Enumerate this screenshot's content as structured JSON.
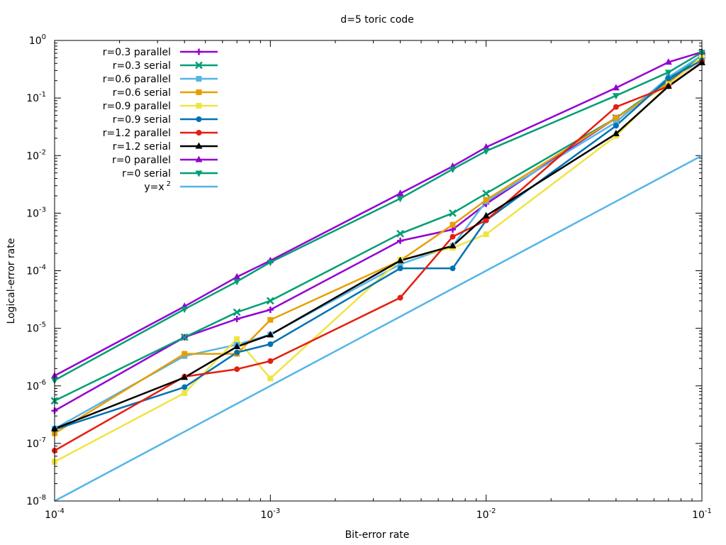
{
  "chart_data": {
    "type": "line",
    "title": "d=5 toric code",
    "xlabel": "Bit-error rate",
    "ylabel": "Logical-error rate",
    "xscale": "log",
    "yscale": "log",
    "xlim": [
      0.0001,
      0.1
    ],
    "ylim": [
      1e-08,
      1
    ],
    "grid": false,
    "legend_position": "top-left",
    "x_ticks": [
      {
        "base": "10",
        "exp": "-4",
        "value": 0.0001
      },
      {
        "base": "10",
        "exp": "-3",
        "value": 0.001
      },
      {
        "base": "10",
        "exp": "-2",
        "value": 0.01
      },
      {
        "base": "10",
        "exp": "-1",
        "value": 0.1
      }
    ],
    "y_ticks": [
      {
        "base": "10",
        "exp": "-8",
        "value": 1e-08
      },
      {
        "base": "10",
        "exp": "-7",
        "value": 1e-07
      },
      {
        "base": "10",
        "exp": "-6",
        "value": 1e-06
      },
      {
        "base": "10",
        "exp": "-5",
        "value": 1e-05
      },
      {
        "base": "10",
        "exp": "-4",
        "value": 0.0001
      },
      {
        "base": "10",
        "exp": "-3",
        "value": 0.001
      },
      {
        "base": "10",
        "exp": "-2",
        "value": 0.01
      },
      {
        "base": "10",
        "exp": "-1",
        "value": 0.1
      },
      {
        "base": "10",
        "exp": "0",
        "value": 1
      }
    ],
    "x": [
      0.0001,
      0.0004,
      0.0007,
      0.001,
      0.004,
      0.007,
      0.01,
      0.04,
      0.07,
      0.1
    ],
    "series": [
      {
        "name": "r=0.3 parallel",
        "color": "#9400d3",
        "marker": "plus",
        "values": [
          3.7e-07,
          7e-06,
          1.45e-05,
          2.1e-05,
          0.00033,
          0.00052,
          0.00145,
          0.045,
          0.18,
          0.55
        ]
      },
      {
        "name": "r=0.3 serial",
        "color": "#009e73",
        "marker": "cross",
        "values": [
          5.5e-07,
          7e-06,
          1.9e-05,
          3e-05,
          0.00044,
          0.001,
          0.0022,
          0.045,
          0.2,
          0.55
        ]
      },
      {
        "name": "r=0.6 parallel",
        "color": "#56b4e9",
        "marker": "square",
        "values": [
          1.8e-07,
          3.3e-06,
          5.2e-06,
          7.8e-06,
          0.00013,
          0.00027,
          0.0016,
          0.038,
          0.23,
          0.55
        ]
      },
      {
        "name": "r=0.6 serial",
        "color": "#e69f00",
        "marker": "square",
        "values": [
          1.5e-07,
          3.6e-06,
          3.6e-06,
          1.4e-05,
          0.00015,
          0.00063,
          0.0017,
          0.045,
          0.18,
          0.48
        ]
      },
      {
        "name": "r=0.9 parallel",
        "color": "#f0e442",
        "marker": "square",
        "values": [
          4.8e-08,
          7.5e-07,
          6.5e-06,
          1.35e-06,
          0.000155,
          0.00025,
          0.00043,
          0.022,
          0.17,
          0.52
        ]
      },
      {
        "name": "r=0.9 serial",
        "color": "#0072b2",
        "marker": "circle",
        "values": [
          1.75e-07,
          9.5e-07,
          3.8e-06,
          5.3e-06,
          0.00011,
          0.00011,
          0.00075,
          0.033,
          0.22,
          0.45
        ]
      },
      {
        "name": "r=1.2 parallel",
        "color": "#e51e10",
        "marker": "circle",
        "values": [
          7.5e-08,
          1.45e-06,
          1.95e-06,
          2.7e-06,
          3.4e-05,
          0.00039,
          0.00075,
          0.07,
          0.16,
          0.42
        ]
      },
      {
        "name": "r=1.2 serial",
        "color": "#000000",
        "marker": "triangle",
        "values": [
          1.8e-07,
          1.4e-06,
          4.8e-06,
          7.7e-06,
          0.00015,
          0.00027,
          0.0009,
          0.024,
          0.16,
          0.41
        ]
      },
      {
        "name": "r=0 parallel",
        "color": "#9400d3",
        "marker": "triangle",
        "values": [
          1.5e-06,
          2.4e-05,
          7.8e-05,
          0.00015,
          0.0022,
          0.0065,
          0.014,
          0.15,
          0.42,
          0.63
        ]
      },
      {
        "name": "r=0 serial",
        "color": "#009e73",
        "marker": "triangle-down",
        "values": [
          1.25e-06,
          2.15e-05,
          6.5e-05,
          0.00014,
          0.0018,
          0.0058,
          0.012,
          0.11,
          0.28,
          0.62
        ]
      },
      {
        "name": "y=x",
        "name_sup": "2",
        "color": "#56b4e9",
        "marker": "none",
        "function": "x^2",
        "values": [
          1e-08,
          1.6e-07,
          4.9e-07,
          1e-06,
          1.6e-05,
          4.9e-05,
          0.0001,
          0.0016,
          0.0049,
          0.01
        ]
      }
    ]
  }
}
